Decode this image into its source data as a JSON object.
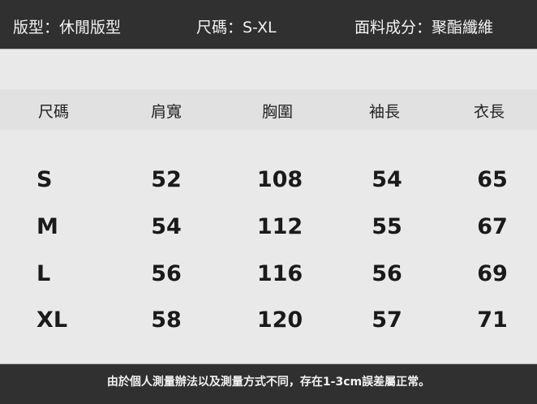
{
  "info_bar": {
    "fit": "版型：休閒版型",
    "sizes": "尺碼：S-XL",
    "material": "面料成分：聚酯纖維"
  },
  "table": {
    "headers": [
      "尺碼",
      "肩寬",
      "胸圍",
      "袖長",
      "衣長"
    ],
    "rows": [
      [
        "S",
        "52",
        "108",
        "54",
        "65"
      ],
      [
        "M",
        "54",
        "112",
        "55",
        "67"
      ],
      [
        "L",
        "56",
        "116",
        "56",
        "69"
      ],
      [
        "XL",
        "58",
        "120",
        "57",
        "71"
      ]
    ]
  },
  "footer_note": "由於個人測量辦法以及測量方式不同，存在1-3cm誤差屬正常。"
}
